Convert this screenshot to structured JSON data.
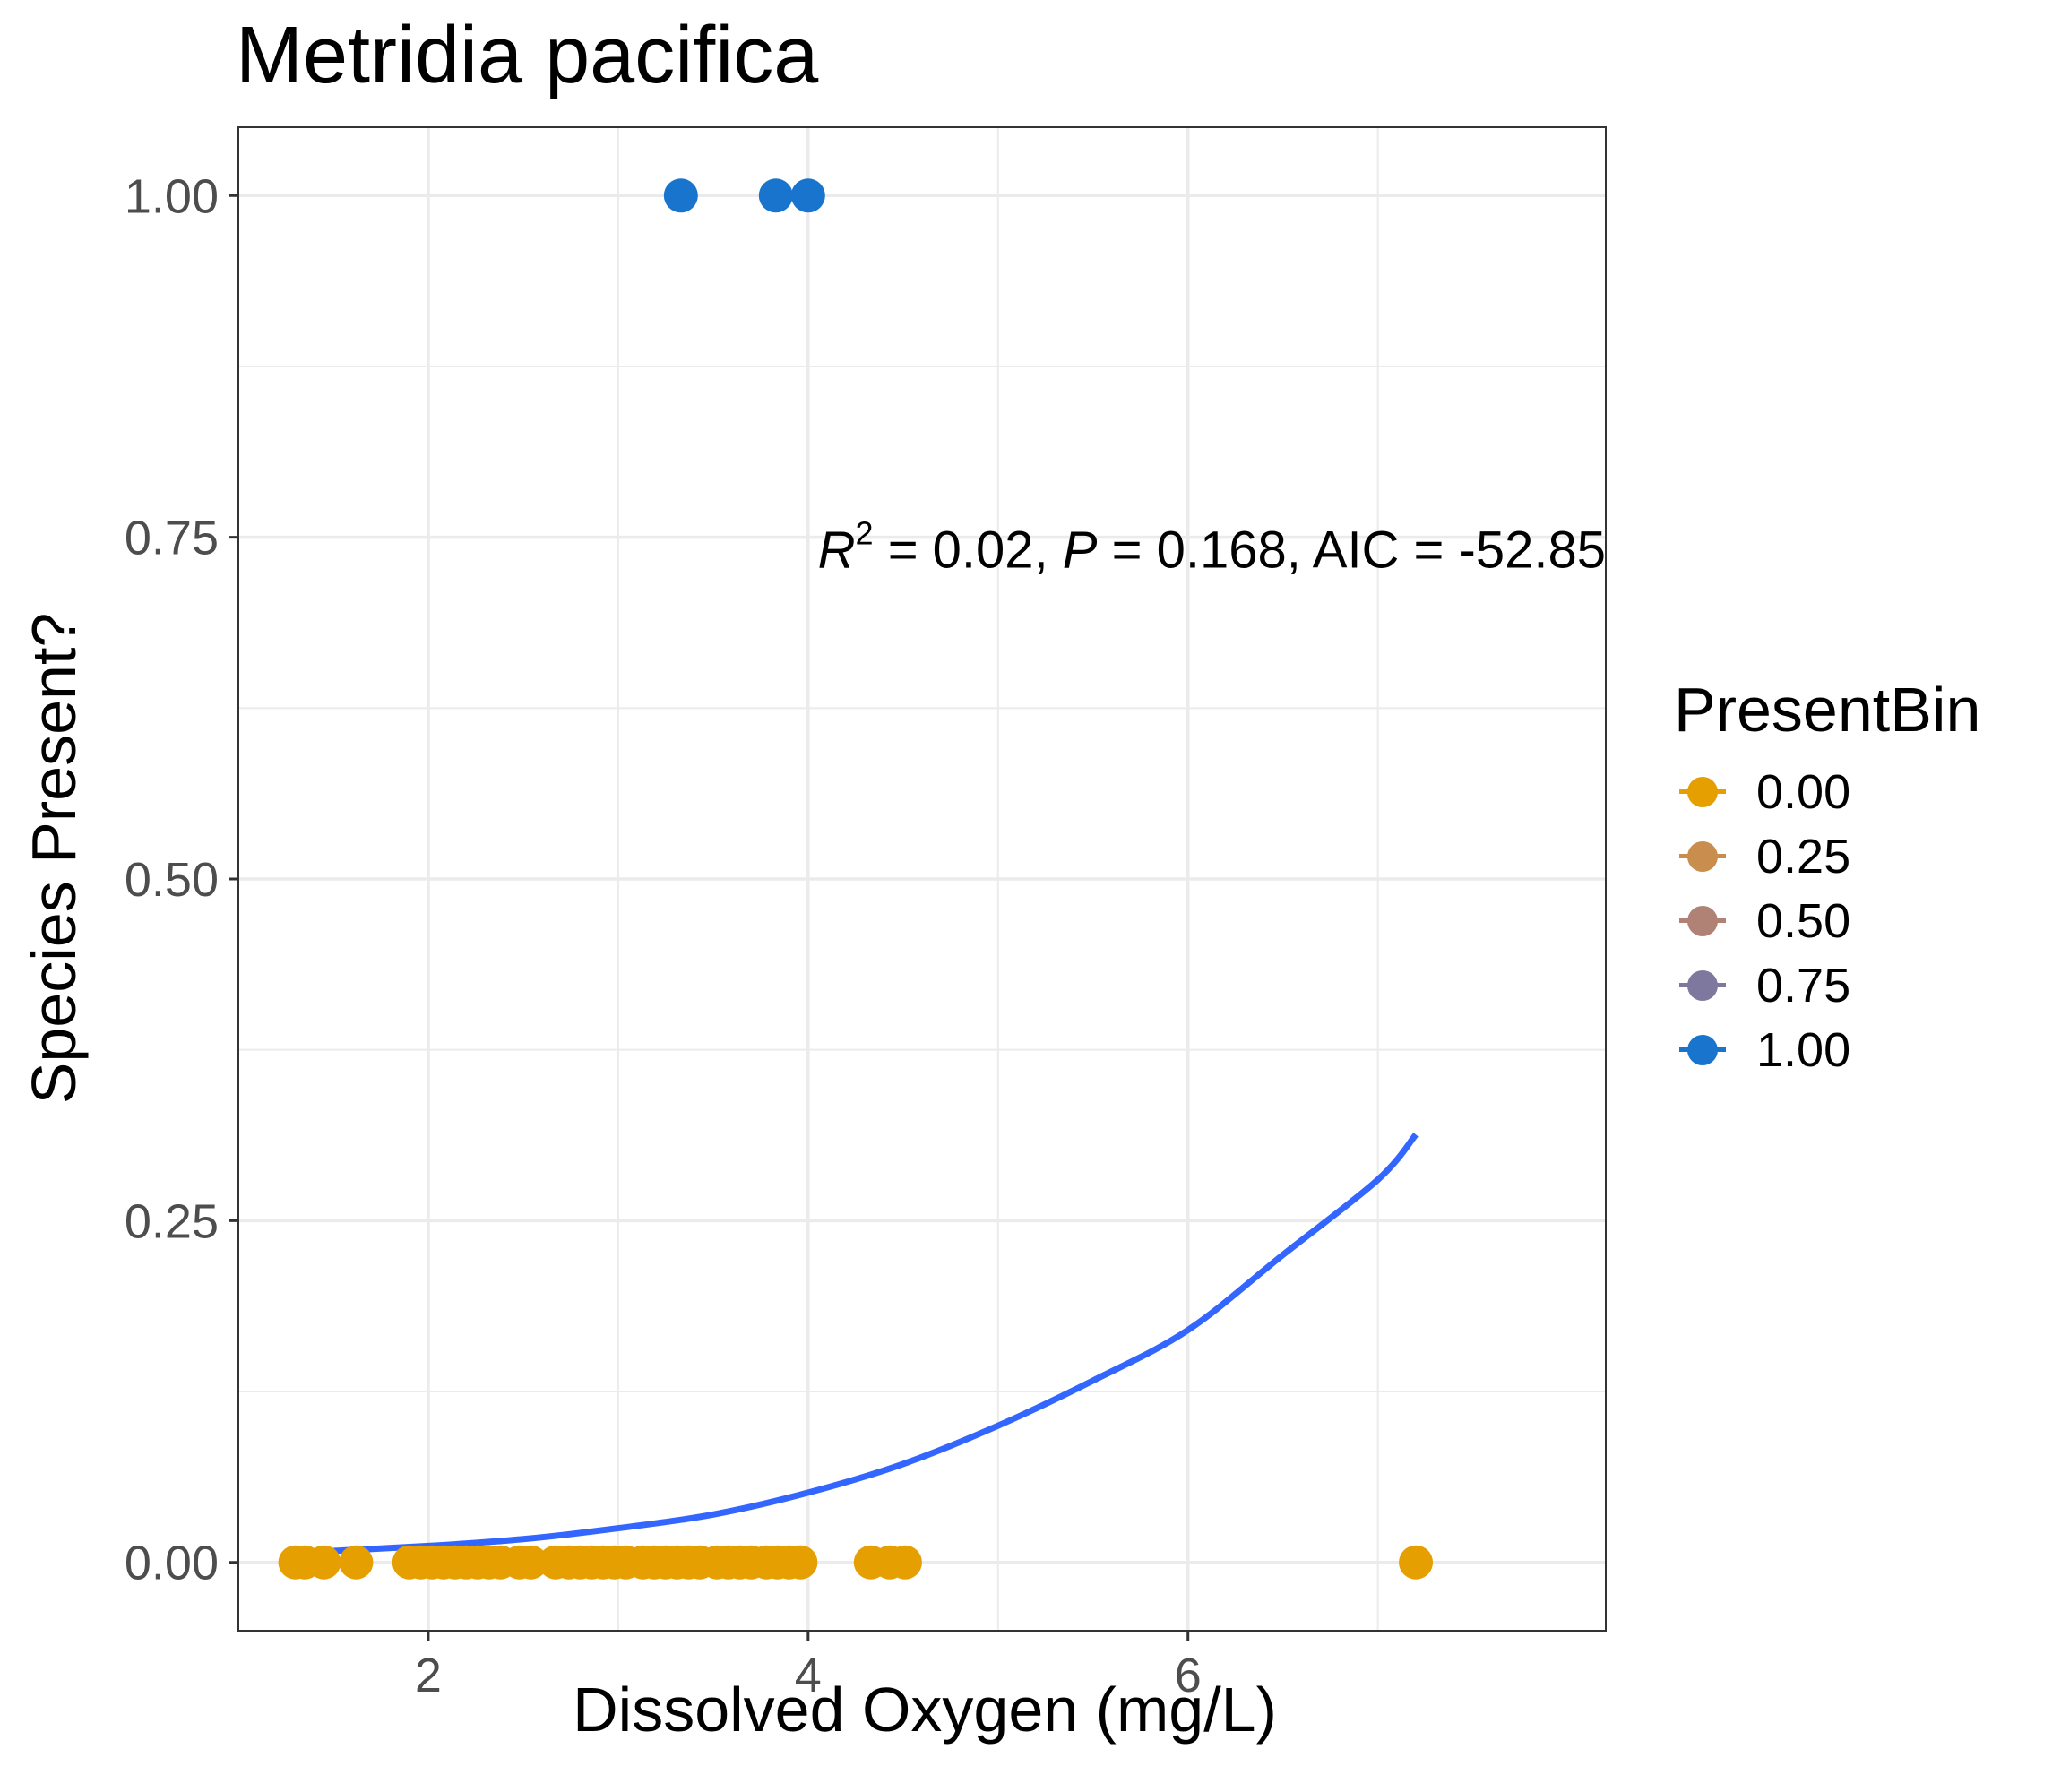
{
  "chart_data": {
    "type": "scatter",
    "title": "Metridia pacifica",
    "xlabel": "Dissolved Oxygen (mg/L)",
    "ylabel": "Species Present?",
    "xlim": [
      1.0,
      8.2
    ],
    "ylim": [
      -0.05,
      1.05
    ],
    "x_ticks": [
      2,
      4,
      6
    ],
    "x_tick_labels": [
      "2",
      "4",
      "6"
    ],
    "y_ticks": [
      0,
      0.25,
      0.5,
      0.75,
      1.0
    ],
    "y_tick_labels": [
      "0.00",
      "0.25",
      "0.50",
      "0.75",
      "1.00"
    ],
    "grid": true,
    "annotation": {
      "r2_symbol": "R",
      "r2_exp": "2",
      "r2_text": " = 0.02, ",
      "p_symbol": "P",
      "p_text": " = 0.168, AIC = -52.85"
    },
    "legend": {
      "title": "PresentBin",
      "position": "right",
      "items": [
        {
          "label": "0.00",
          "color": "#E69F00"
        },
        {
          "label": "0.25",
          "color": "#C98D4E"
        },
        {
          "label": "0.50",
          "color": "#B08276"
        },
        {
          "label": "0.75",
          "color": "#7F789E"
        },
        {
          "label": "1.00",
          "color": "#1874CD"
        }
      ]
    },
    "series": [
      {
        "presentbin": 0,
        "color": "#E69F00",
        "points": [
          [
            1.3,
            0
          ],
          [
            1.35,
            0
          ],
          [
            1.45,
            0
          ],
          [
            1.62,
            0
          ],
          [
            1.9,
            0
          ],
          [
            1.96,
            0
          ],
          [
            2.02,
            0
          ],
          [
            2.08,
            0
          ],
          [
            2.14,
            0
          ],
          [
            2.2,
            0
          ],
          [
            2.26,
            0
          ],
          [
            2.32,
            0
          ],
          [
            2.38,
            0
          ],
          [
            2.48,
            0
          ],
          [
            2.54,
            0
          ],
          [
            2.67,
            0
          ],
          [
            2.74,
            0
          ],
          [
            2.8,
            0
          ],
          [
            2.86,
            0
          ],
          [
            2.92,
            0
          ],
          [
            2.98,
            0
          ],
          [
            3.04,
            0
          ],
          [
            3.13,
            0
          ],
          [
            3.19,
            0
          ],
          [
            3.25,
            0
          ],
          [
            3.31,
            0
          ],
          [
            3.37,
            0
          ],
          [
            3.43,
            0
          ],
          [
            3.52,
            0
          ],
          [
            3.58,
            0
          ],
          [
            3.64,
            0
          ],
          [
            3.7,
            0
          ],
          [
            3.78,
            0
          ],
          [
            3.84,
            0
          ],
          [
            3.9,
            0
          ],
          [
            3.96,
            0
          ],
          [
            4.33,
            0
          ],
          [
            4.43,
            0
          ],
          [
            4.51,
            0
          ],
          [
            7.2,
            0
          ]
        ]
      },
      {
        "presentbin": 1,
        "color": "#1874CD",
        "points": [
          [
            3.33,
            1
          ],
          [
            3.83,
            1
          ],
          [
            4.0,
            1
          ]
        ]
      }
    ],
    "fit_line": {
      "color": "#3366FF",
      "model": "logistic",
      "x_range": [
        1.3,
        7.2
      ],
      "curve": [
        [
          1.3,
          0.007
        ],
        [
          2.0,
          0.012
        ],
        [
          2.5,
          0.017
        ],
        [
          3.0,
          0.025
        ],
        [
          3.5,
          0.035
        ],
        [
          4.0,
          0.051
        ],
        [
          4.5,
          0.072
        ],
        [
          5.0,
          0.1
        ],
        [
          5.5,
          0.133
        ],
        [
          6.0,
          0.17
        ],
        [
          6.5,
          0.225
        ],
        [
          7.0,
          0.28
        ],
        [
          7.2,
          0.313
        ]
      ]
    }
  }
}
